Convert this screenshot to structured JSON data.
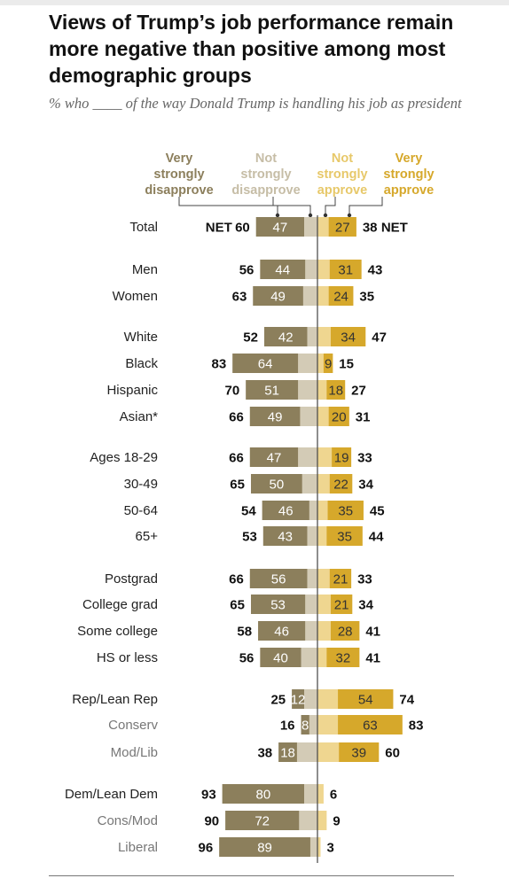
{
  "title": "Views of Trump’s job performance remain more negative than positive among most demographic groups",
  "subtitle": "% who ____ of the way Donald Trump is handling his job as president",
  "colors": {
    "very_strongly_disapprove": "#8c7f5c",
    "not_strongly_disapprove": "#d3cbb6",
    "not_strongly_approve": "#efd690",
    "very_strongly_approve": "#d6a82b"
  },
  "chart_data": {
    "type": "bar",
    "legend": [
      {
        "label": "Very strongly disapprove",
        "lines": [
          "Very",
          "strongly",
          "disapprove"
        ],
        "color": "#8c7f5c"
      },
      {
        "label": "Not strongly disapprove",
        "lines": [
          "Not",
          "strongly",
          "disapprove"
        ],
        "color": "#c6bda6"
      },
      {
        "label": "Not strongly approve",
        "lines": [
          "Not",
          "strongly",
          "approve"
        ],
        "color": "#e7c869"
      },
      {
        "label": "Very strongly approve",
        "lines": [
          "Very",
          "strongly",
          "approve"
        ],
        "color": "#d6a82b"
      }
    ],
    "net_prefix": "NET",
    "net_suffix": "NET",
    "rows": [
      {
        "label": "Total",
        "label_color": "#222222",
        "strong_disapprove": 47,
        "net_disapprove": 60,
        "strong_approve": 27,
        "net_approve": 38,
        "gap_after": 48
      },
      {
        "label": "Men",
        "label_color": "#222222",
        "strong_disapprove": 44,
        "net_disapprove": 56,
        "strong_approve": 31,
        "net_approve": 43,
        "gap_after": 30
      },
      {
        "label": "Women",
        "label_color": "#222222",
        "strong_disapprove": 49,
        "net_disapprove": 63,
        "strong_approve": 24,
        "net_approve": 35,
        "gap_after": 46
      },
      {
        "label": "White",
        "label_color": "#222222",
        "strong_disapprove": 42,
        "net_disapprove": 52,
        "strong_approve": 34,
        "net_approve": 47,
        "gap_after": 30
      },
      {
        "label": "Black",
        "label_color": "#222222",
        "strong_disapprove": 64,
        "net_disapprove": 83,
        "strong_approve": 9,
        "net_approve": 15,
        "gap_after": 30
      },
      {
        "label": "Hispanic",
        "label_color": "#222222",
        "strong_disapprove": 51,
        "net_disapprove": 70,
        "strong_approve": 18,
        "net_approve": 27,
        "gap_after": 30
      },
      {
        "label": "Asian*",
        "label_color": "#222222",
        "strong_disapprove": 49,
        "net_disapprove": 66,
        "strong_approve": 20,
        "net_approve": 31,
        "gap_after": 46
      },
      {
        "label": "Ages 18-29",
        "label_color": "#222222",
        "strong_disapprove": 47,
        "net_disapprove": 66,
        "strong_approve": 19,
        "net_approve": 33,
        "gap_after": 30
      },
      {
        "label": "30-49",
        "label_color": "#222222",
        "strong_disapprove": 50,
        "net_disapprove": 65,
        "strong_approve": 22,
        "net_approve": 34,
        "gap_after": 30
      },
      {
        "label": "50-64",
        "label_color": "#222222",
        "strong_disapprove": 46,
        "net_disapprove": 54,
        "strong_approve": 35,
        "net_approve": 45,
        "gap_after": 29
      },
      {
        "label": "65+",
        "label_color": "#222222",
        "strong_disapprove": 43,
        "net_disapprove": 53,
        "strong_approve": 35,
        "net_approve": 44,
        "gap_after": 48
      },
      {
        "label": "Postgrad",
        "label_color": "#222222",
        "strong_disapprove": 56,
        "net_disapprove": 66,
        "strong_approve": 21,
        "net_approve": 33,
        "gap_after": 29
      },
      {
        "label": "College grad",
        "label_color": "#222222",
        "strong_disapprove": 53,
        "net_disapprove": 65,
        "strong_approve": 21,
        "net_approve": 34,
        "gap_after": 30
      },
      {
        "label": "Some college",
        "label_color": "#222222",
        "strong_disapprove": 46,
        "net_disapprove": 58,
        "strong_approve": 28,
        "net_approve": 41,
        "gap_after": 30
      },
      {
        "label": "HS or less",
        "label_color": "#222222",
        "strong_disapprove": 40,
        "net_disapprove": 56,
        "strong_approve": 32,
        "net_approve": 41,
        "gap_after": 47
      },
      {
        "label": "Rep/Lean Rep",
        "label_color": "#222222",
        "strong_disapprove": 12,
        "net_disapprove": 25,
        "strong_approve": 54,
        "net_approve": 74,
        "gap_after": 29
      },
      {
        "label": "Conserv",
        "label_color": "#777777",
        "strong_disapprove": 8,
        "net_disapprove": 16,
        "strong_approve": 63,
        "net_approve": 83,
        "gap_after": 31
      },
      {
        "label": "Mod/Lib",
        "label_color": "#777777",
        "strong_disapprove": 18,
        "net_disapprove": 38,
        "strong_approve": 39,
        "net_approve": 60,
        "gap_after": 47
      },
      {
        "label": "Dem/Lean Dem",
        "label_color": "#222222",
        "strong_disapprove": 80,
        "net_disapprove": 93,
        "strong_approve": null,
        "net_approve": 6,
        "gap_after": 30
      },
      {
        "label": "Cons/Mod",
        "label_color": "#777777",
        "strong_disapprove": 72,
        "net_disapprove": 90,
        "strong_approve": null,
        "net_approve": 9,
        "gap_after": 30
      },
      {
        "label": "Liberal",
        "label_color": "#777777",
        "strong_disapprove": 89,
        "net_disapprove": 96,
        "strong_approve": null,
        "net_approve": 3,
        "gap_after": 0
      }
    ]
  }
}
